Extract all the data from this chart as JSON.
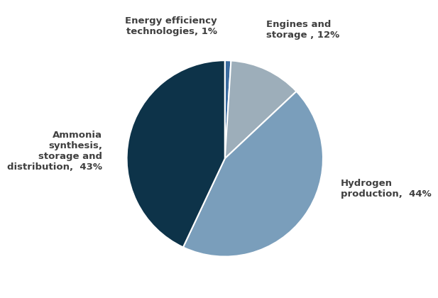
{
  "labels": [
    "Energy efficiency\ntechnologies, 1%",
    "Engines and\nstorage , 12%",
    "Hydrogen\nproduction,  44%",
    "Ammonia\nsynthesis,\nstorage and\ndistribution,  43%"
  ],
  "values": [
    1,
    12,
    44,
    43
  ],
  "slice_colors": [
    "#3A6B9F",
    "#9DAEBA",
    "#7A9EBB",
    "#0D3349"
  ],
  "startangle": 90,
  "background_color": "#ffffff",
  "text_color": "#404040",
  "font_size": 9.5
}
